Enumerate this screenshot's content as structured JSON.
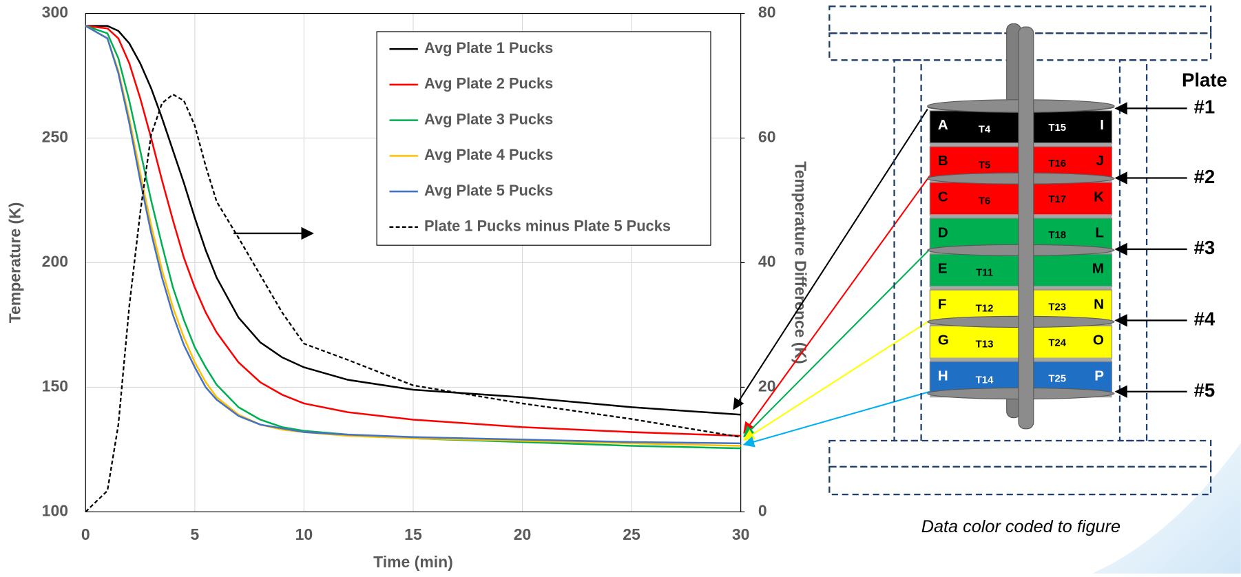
{
  "chart_data": {
    "type": "line",
    "xlabel": "Time (min)",
    "ylabel": "Temperature (K)",
    "y2label": "Temperature Difference (K)",
    "x": [
      0,
      1,
      1.5,
      2,
      2.5,
      3,
      3.5,
      4,
      4.5,
      5,
      5.5,
      6,
      7,
      8,
      9,
      10,
      12,
      15,
      20,
      25,
      30
    ],
    "series": [
      {
        "name": "Avg Plate 1 Pucks",
        "color": "#000000",
        "values": [
          295,
          295,
          293,
          288,
          280,
          270,
          258,
          245,
          232,
          218,
          205,
          194,
          178,
          168,
          162,
          158,
          153,
          149,
          146,
          142,
          139
        ]
      },
      {
        "name": "Avg Plate 2 Pucks",
        "color": "#ff0000",
        "values": [
          295,
          294,
          290,
          280,
          266,
          250,
          233,
          217,
          202,
          190,
          180,
          172,
          160,
          152,
          147,
          143.5,
          140,
          137,
          134,
          132,
          130.5
        ]
      },
      {
        "name": "Avg Plate 3  Pucks",
        "color": "#00b050",
        "values": [
          295,
          292,
          282,
          265,
          245,
          225,
          207,
          190,
          177,
          166,
          158,
          151,
          142,
          137,
          134,
          132.5,
          131,
          129.5,
          128,
          126.5,
          125.5
        ]
      },
      {
        "name": "Avg Plate 4  Pucks",
        "color": "#ffc000",
        "values": [
          295,
          290,
          277,
          258,
          236,
          215,
          197,
          182,
          170,
          160,
          152,
          146,
          139,
          135,
          133,
          132,
          130.5,
          129.5,
          128.5,
          127.5,
          126.5
        ]
      },
      {
        "name": "Avg Plate 5 Pucks",
        "color": "#4472c4",
        "values": [
          295,
          290,
          276,
          256,
          233,
          212,
          194,
          179,
          167,
          158,
          150,
          145,
          138.5,
          135,
          133.5,
          132,
          131,
          130,
          129,
          128,
          127.5
        ]
      },
      {
        "name": "Plate 1 Pucks minus Plate 5 Pucks",
        "color": "#000000",
        "dashed": true,
        "axis": "y2",
        "values": [
          0,
          3.4,
          14,
          33,
          48,
          60.5,
          65.6,
          67,
          66,
          62,
          55.5,
          49.8,
          44,
          38,
          32,
          27,
          24.4,
          20.3,
          17.4,
          14.9,
          12
        ]
      }
    ],
    "xlim": [
      0,
      30
    ],
    "xticks": [
      0,
      5,
      10,
      15,
      20,
      25,
      30
    ],
    "ylim": [
      100,
      300
    ],
    "yticks": [
      100,
      150,
      200,
      250,
      300
    ],
    "y2lim": [
      0,
      80
    ],
    "y2ticks": [
      0,
      20,
      40,
      60,
      80
    ],
    "grid": true,
    "legend": "upper right"
  },
  "diagram": {
    "plate_heading": "Plate",
    "plates": [
      "#1",
      "#2",
      "#3",
      "#4",
      "#5"
    ],
    "pucks": [
      {
        "left": "A",
        "t_left": "T4",
        "t_right": "T15",
        "right": "I",
        "color": "#000000",
        "text": "#ffffff"
      },
      {
        "left": "B",
        "t_left": "T5",
        "t_right": "T16",
        "right": "J",
        "color": "#ff0000",
        "text": "#000000"
      },
      {
        "left": "C",
        "t_left": "T6",
        "t_right": "T17",
        "right": "K",
        "color": "#ff0000",
        "text": "#000000"
      },
      {
        "left": "D",
        "t_left": null,
        "t_right": "T18",
        "right": "L",
        "color": "#00b050",
        "text": "#000000"
      },
      {
        "left": "E",
        "t_left": "T11",
        "t_right": null,
        "right": "M",
        "color": "#00b050",
        "text": "#000000"
      },
      {
        "left": "F",
        "t_left": "T12",
        "t_right": "T23",
        "right": "N",
        "color": "#ffff00",
        "text": "#000000"
      },
      {
        "left": "G",
        "t_left": "T13",
        "t_right": "T24",
        "right": "O",
        "color": "#ffff00",
        "text": "#000000"
      },
      {
        "left": "H",
        "t_left": "T14",
        "t_right": "T25",
        "right": "P",
        "color": "#1f6fc4",
        "text": "#ffffff"
      }
    ],
    "caption": "Data color coded to figure"
  }
}
